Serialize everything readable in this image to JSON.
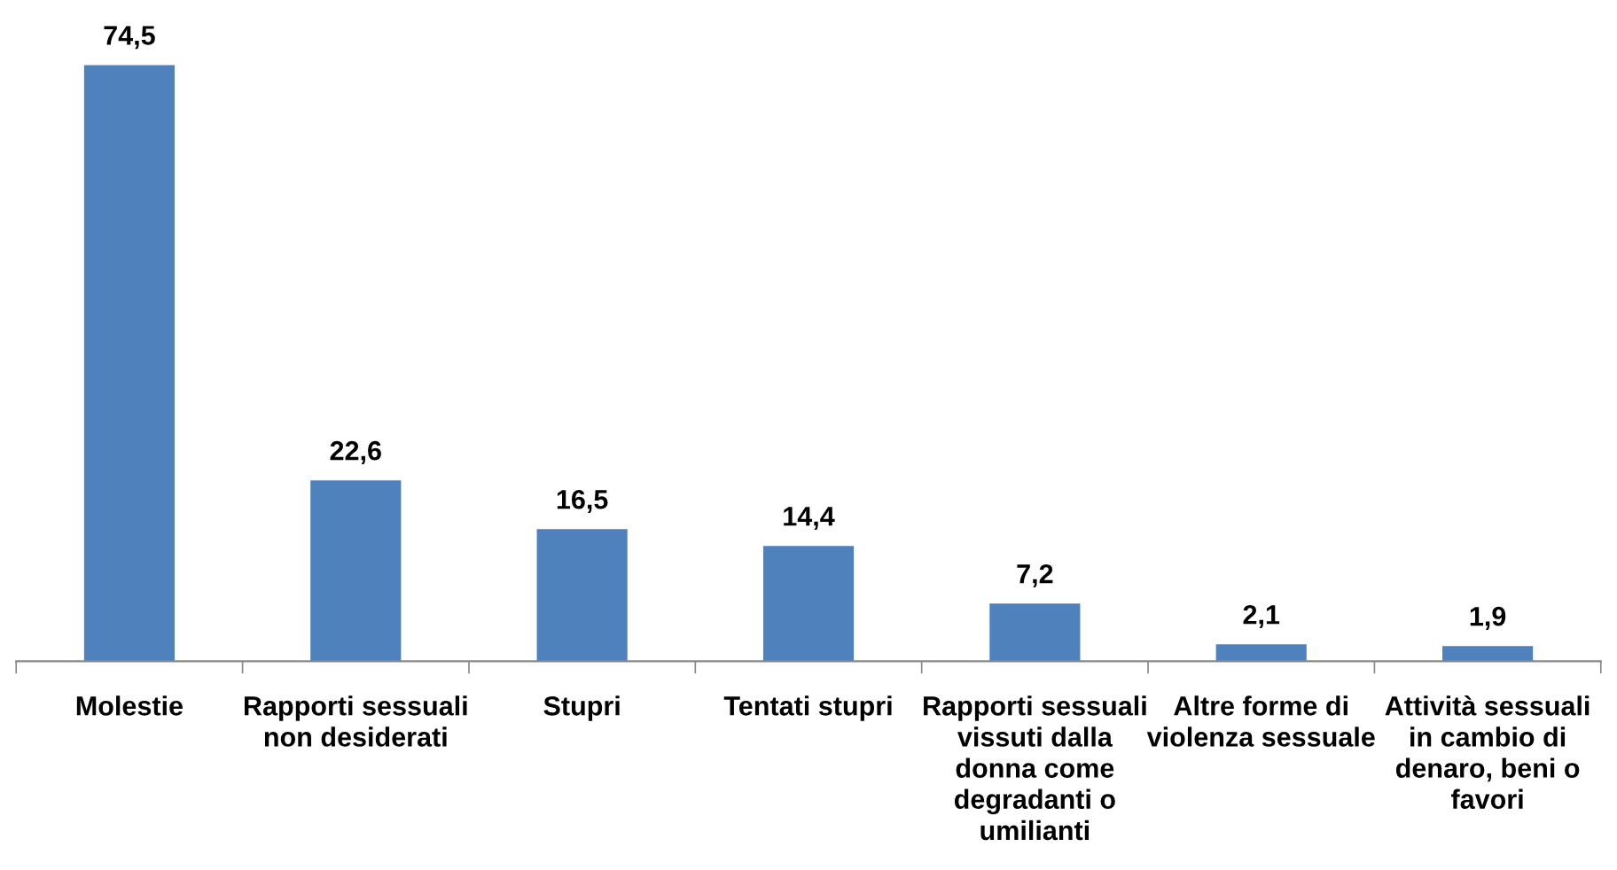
{
  "chart_data": {
    "type": "bar",
    "categories": [
      "Molestie",
      "Rapporti sessuali\nnon desiderati",
      "Stupri",
      "Tentati stupri",
      "Rapporti sessuali\nvissuti dalla\ndonna come\ndegradanti o\numilianti",
      "Altre forme di\nviolenza sessuale",
      "Attività sessuali\nin cambio di\ndenaro, beni o\nfavori"
    ],
    "values": [
      74.5,
      22.6,
      16.5,
      14.4,
      7.2,
      2.1,
      1.9
    ],
    "value_labels": [
      "74,5",
      "22,6",
      "16,5",
      "14,4",
      "7,2",
      "2,1",
      "1,9"
    ],
    "color": "#4f81bd",
    "tick_labels": "x",
    "grid": false,
    "legend": false
  }
}
